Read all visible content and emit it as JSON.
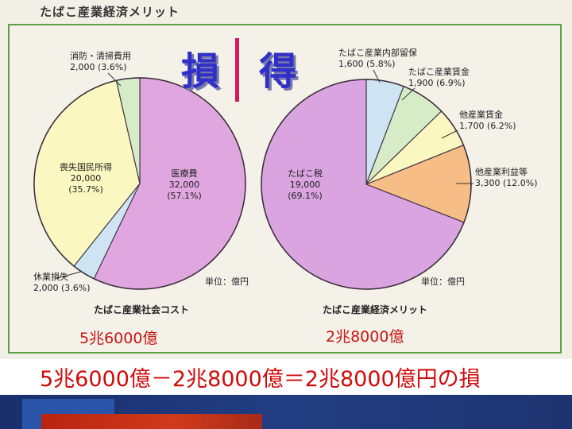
{
  "header": {
    "title": "たばこ産業経済メリット"
  },
  "headings": {
    "loss": "損",
    "gain": "得"
  },
  "chart_data": [
    {
      "type": "pie",
      "title": "たばこ産業社会コスト",
      "unit_label": "単位：億円",
      "total_label": "5兆6000億",
      "slices": [
        {
          "label": "医療費",
          "value": 32000,
          "value_text": "32,000",
          "percent_text": "(57.1%)",
          "color": "#e0a6e0"
        },
        {
          "label": "休業損失",
          "value": 2000,
          "value_text": "2,000",
          "percent_text": "(3.6%)",
          "color": "#cfe4f2"
        },
        {
          "label": "喪失国民所得",
          "value": 20000,
          "value_text": "20,000",
          "percent_text": "(35.7%)",
          "color": "#fbf7c0"
        },
        {
          "label": "消防・清掃費用",
          "value": 2000,
          "value_text": "2,000",
          "percent_text": "(3.6%)",
          "color": "#d6ecc6"
        }
      ]
    },
    {
      "type": "pie",
      "title": "たばこ産業経済メリット",
      "unit_label": "単位：億円",
      "total_label": "2兆8000億",
      "slices": [
        {
          "label": "たばこ産業内部留保",
          "value": 1600,
          "value_text": "1,600",
          "percent_text": "(5.8%)",
          "color": "#cfe4f2"
        },
        {
          "label": "たばこ産業賃金",
          "value": 1900,
          "value_text": "1,900",
          "percent_text": "(6.9%)",
          "color": "#d6ecc6"
        },
        {
          "label": "他産業賃金",
          "value": 1700,
          "value_text": "1,700",
          "percent_text": "(6.2%)",
          "color": "#fbf7c0"
        },
        {
          "label": "他産業利益等",
          "value": 3300,
          "value_text": "3,300",
          "percent_text": "(12.0%)",
          "color": "#f6be86"
        },
        {
          "label": "たばこ税",
          "value": 19000,
          "value_text": "19,000",
          "percent_text": "(69.1%)",
          "color": "#d9a4e0"
        }
      ]
    }
  ],
  "formula": {
    "text": "5兆6000億－2兆8000億＝2兆8000億円の損"
  }
}
